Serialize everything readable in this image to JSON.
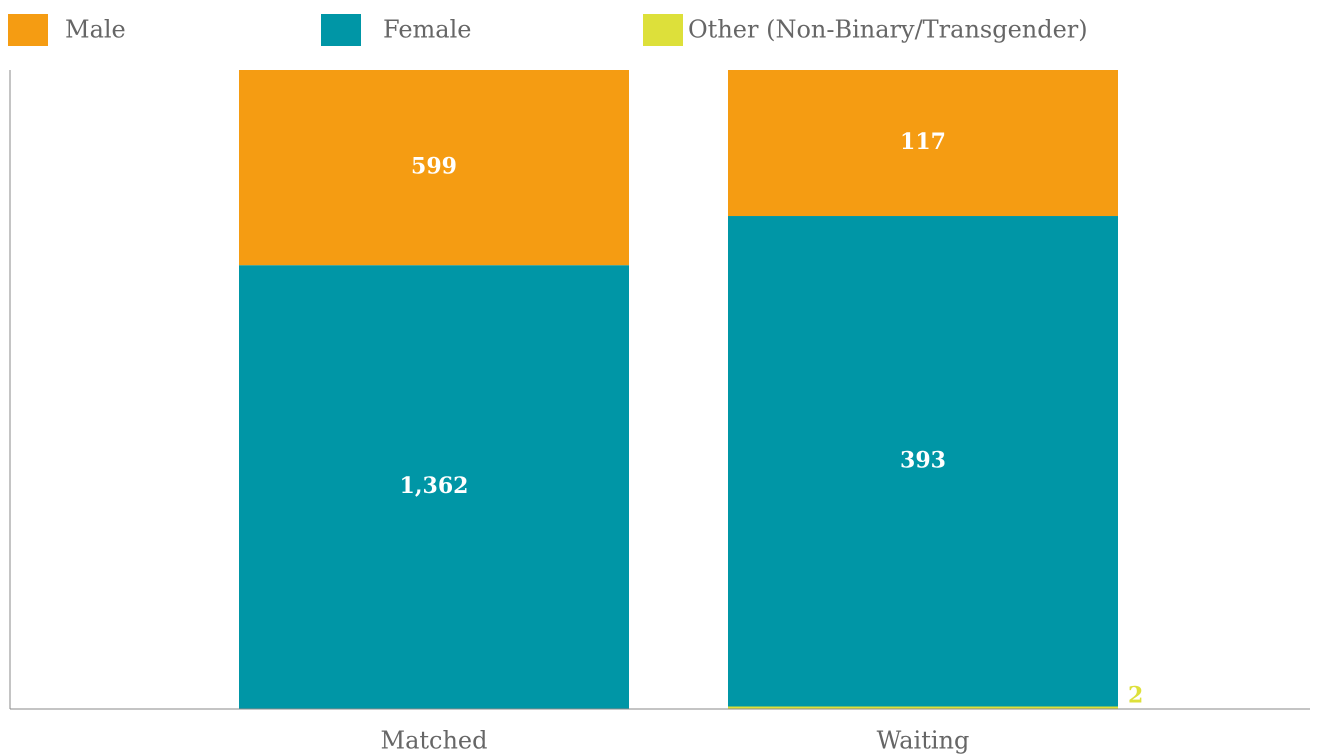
{
  "chart_data": {
    "type": "bar",
    "stacking": "percent",
    "categories": [
      "Matched",
      "Waiting"
    ],
    "series": [
      {
        "name": "Male",
        "color": "#f59c12",
        "values": [
          599,
          117
        ]
      },
      {
        "name": "Female",
        "color": "#0096a6",
        "values": [
          1362,
          393
        ],
        "value_labels": [
          "1,362",
          "393"
        ]
      },
      {
        "name": "Other (Non-Binary/Transgender)",
        "color": "#dde03a",
        "values": [
          null,
          2
        ]
      }
    ]
  }
}
